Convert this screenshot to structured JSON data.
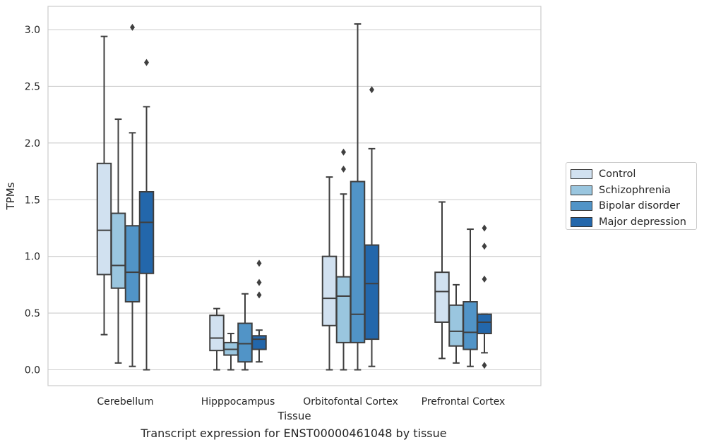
{
  "chart_data": {
    "type": "box",
    "xlabel": "Tissue",
    "ylabel": "TPMs",
    "ylim": [
      -0.14,
      3.2
    ],
    "yticks": [
      0.0,
      0.5,
      1.0,
      1.5,
      2.0,
      2.5,
      3.0
    ],
    "ytick_labels": [
      "0.0",
      "0.5",
      "1.0",
      "1.5",
      "2.0",
      "2.5",
      "3.0"
    ],
    "grid": "horizontal",
    "legend_position": "right",
    "categories": [
      "Cerebellum",
      "Hipppocampus",
      "Orbitofontal Cortex",
      "Prefrontal Cortex"
    ],
    "series": [
      {
        "name": "Control",
        "color": "#d1e1f0",
        "boxes": [
          {
            "whislo": 0.31,
            "q1": 0.84,
            "med": 1.23,
            "q3": 1.82,
            "whishi": 2.94,
            "fliers": []
          },
          {
            "whislo": 0.0,
            "q1": 0.17,
            "med": 0.28,
            "q3": 0.48,
            "whishi": 0.54,
            "fliers": []
          },
          {
            "whislo": 0.0,
            "q1": 0.39,
            "med": 0.63,
            "q3": 1.0,
            "whishi": 1.7,
            "fliers": []
          },
          {
            "whislo": 0.1,
            "q1": 0.42,
            "med": 0.69,
            "q3": 0.86,
            "whishi": 1.48,
            "fliers": []
          }
        ]
      },
      {
        "name": "Schizophrenia",
        "color": "#9ac6df",
        "boxes": [
          {
            "whislo": 0.06,
            "q1": 0.72,
            "med": 0.92,
            "q3": 1.38,
            "whishi": 2.21,
            "fliers": []
          },
          {
            "whislo": 0.0,
            "q1": 0.13,
            "med": 0.18,
            "q3": 0.24,
            "whishi": 0.32,
            "fliers": []
          },
          {
            "whislo": 0.0,
            "q1": 0.24,
            "med": 0.65,
            "q3": 0.82,
            "whishi": 1.55,
            "fliers": [
              1.77,
              1.92
            ]
          },
          {
            "whislo": 0.06,
            "q1": 0.21,
            "med": 0.34,
            "q3": 0.57,
            "whishi": 0.75,
            "fliers": []
          }
        ]
      },
      {
        "name": "Bipolar disorder",
        "color": "#5194c7",
        "boxes": [
          {
            "whislo": 0.03,
            "q1": 0.6,
            "med": 0.86,
            "q3": 1.27,
            "whishi": 2.09,
            "fliers": [
              3.02
            ]
          },
          {
            "whislo": 0.0,
            "q1": 0.07,
            "med": 0.23,
            "q3": 0.41,
            "whishi": 0.67,
            "fliers": []
          },
          {
            "whislo": 0.0,
            "q1": 0.24,
            "med": 0.49,
            "q3": 1.66,
            "whishi": 3.05,
            "fliers": []
          },
          {
            "whislo": 0.03,
            "q1": 0.18,
            "med": 0.33,
            "q3": 0.6,
            "whishi": 1.24,
            "fliers": []
          }
        ]
      },
      {
        "name": "Major depression",
        "color": "#2367ab",
        "boxes": [
          {
            "whislo": 0.0,
            "q1": 0.85,
            "med": 1.3,
            "q3": 1.57,
            "whishi": 2.32,
            "fliers": [
              2.71
            ]
          },
          {
            "whislo": 0.07,
            "q1": 0.18,
            "med": 0.27,
            "q3": 0.3,
            "whishi": 0.35,
            "fliers": [
              0.66,
              0.77,
              0.94
            ]
          },
          {
            "whislo": 0.03,
            "q1": 0.27,
            "med": 0.76,
            "q3": 1.1,
            "whishi": 1.95,
            "fliers": [
              2.47
            ]
          },
          {
            "whislo": 0.15,
            "q1": 0.32,
            "med": 0.42,
            "q3": 0.49,
            "whishi": 0.49,
            "fliers": [
              0.04,
              0.8,
              1.09,
              1.25
            ]
          }
        ]
      }
    ]
  },
  "caption": "Transcript expression for ENST00000461048 by tissue"
}
